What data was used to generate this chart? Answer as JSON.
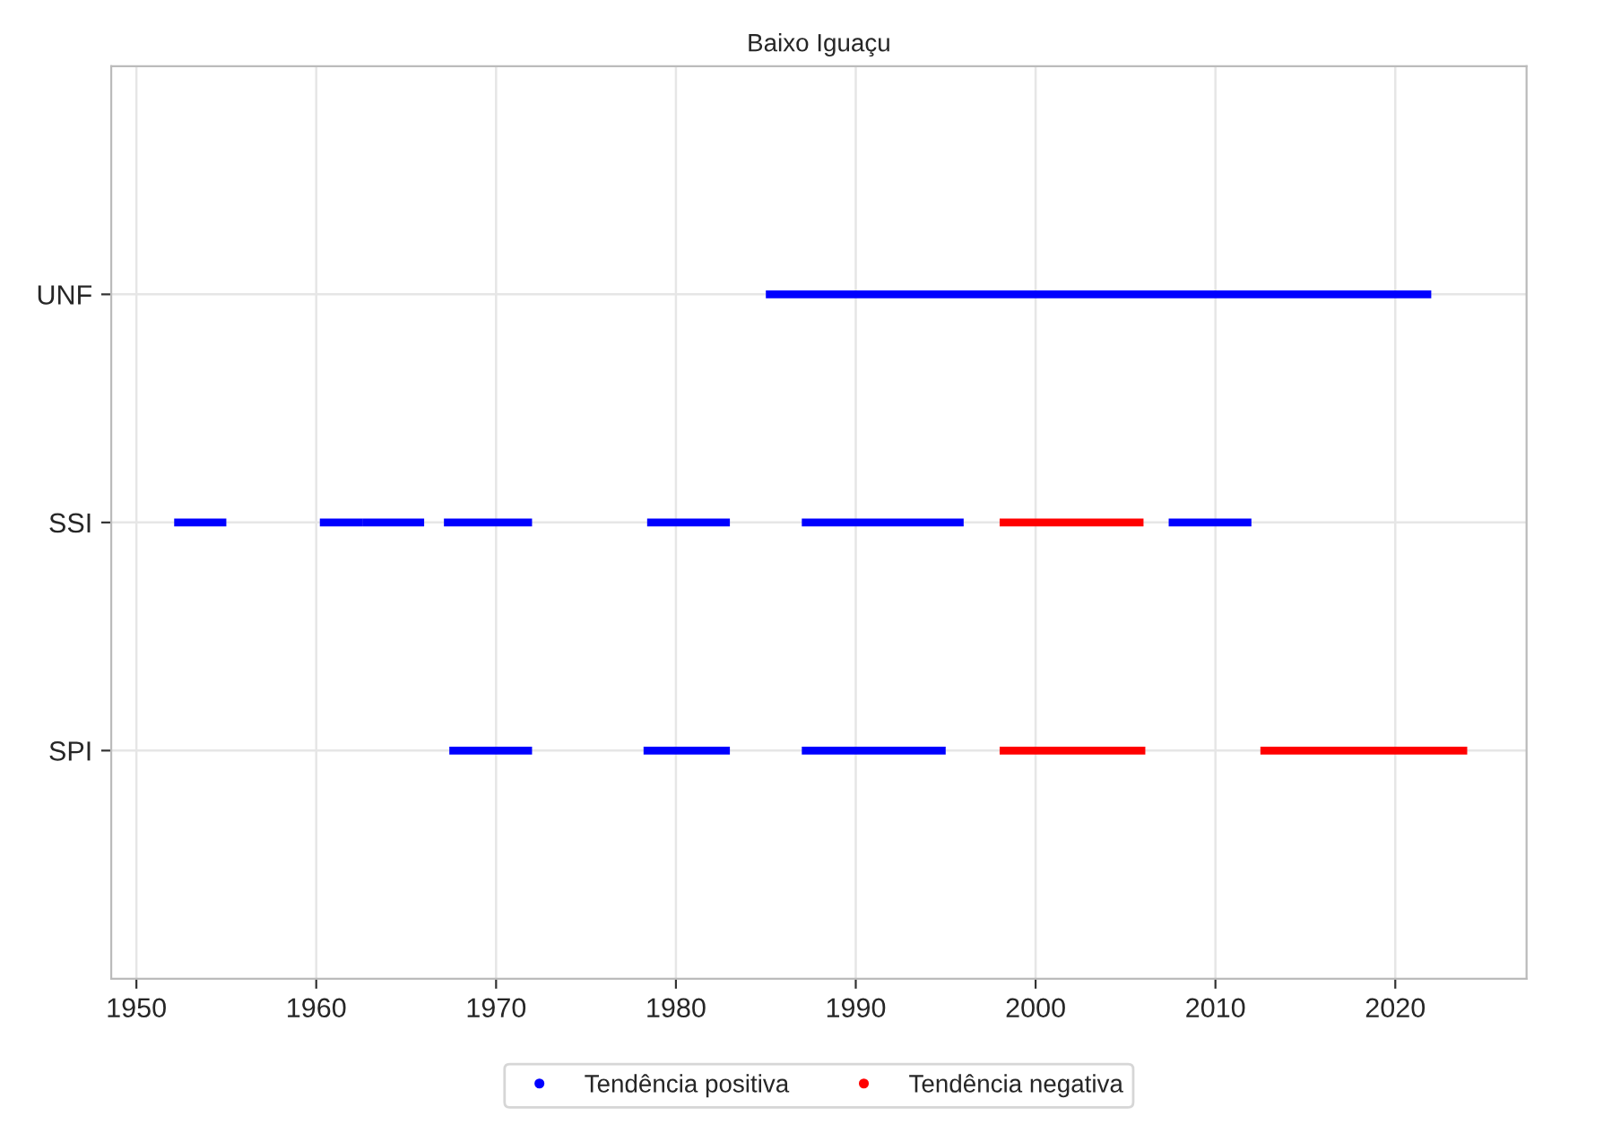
{
  "chart_data": {
    "type": "bar",
    "orientation": "horizontal",
    "title": "Baixo Iguaçu",
    "categories": [
      "UNF",
      "SSI",
      "SPI"
    ],
    "series": [
      {
        "name": "Tendência positiva",
        "color": "#0000ff",
        "base": [
          1985,
          1952.1,
          1967.4
        ],
        "values": [
          37,
          2.9,
          4.6
        ]
      },
      {
        "color": "#0000ff",
        "base": [
          null,
          1960.2,
          1978.2
        ],
        "values": [
          null,
          2.4,
          4.8
        ]
      },
      {
        "color": "#0000ff",
        "base": [
          null,
          1962.6,
          1987
        ],
        "values": [
          null,
          3.4,
          8
        ]
      },
      {
        "color": "#0000ff",
        "base": [
          null,
          1967.1,
          null
        ],
        "values": [
          null,
          4.9,
          null
        ]
      },
      {
        "color": "#0000ff",
        "base": [
          null,
          1978.4,
          null
        ],
        "values": [
          null,
          4.6,
          null
        ]
      },
      {
        "color": "#0000ff",
        "base": [
          null,
          1987,
          null
        ],
        "values": [
          null,
          9,
          null
        ]
      },
      {
        "color": "#0000ff",
        "base": [
          null,
          2007.4,
          null
        ],
        "values": [
          null,
          4.6,
          null
        ]
      },
      {
        "name": "Tendência negativa",
        "color": "#ff0000",
        "base": [
          null,
          1998,
          1998
        ],
        "values": [
          null,
          8,
          8.1
        ]
      },
      {
        "color": "#ff0000",
        "base": [
          null,
          null,
          2012.5
        ],
        "values": [
          null,
          null,
          11.5
        ]
      }
    ],
    "xlim": [
      1948.6,
      2027.3
    ],
    "xticks": [
      1950,
      1960,
      1970,
      1980,
      1990,
      2000,
      2010,
      2020
    ],
    "grid": true,
    "legend": "bottom",
    "marker": "circle"
  }
}
